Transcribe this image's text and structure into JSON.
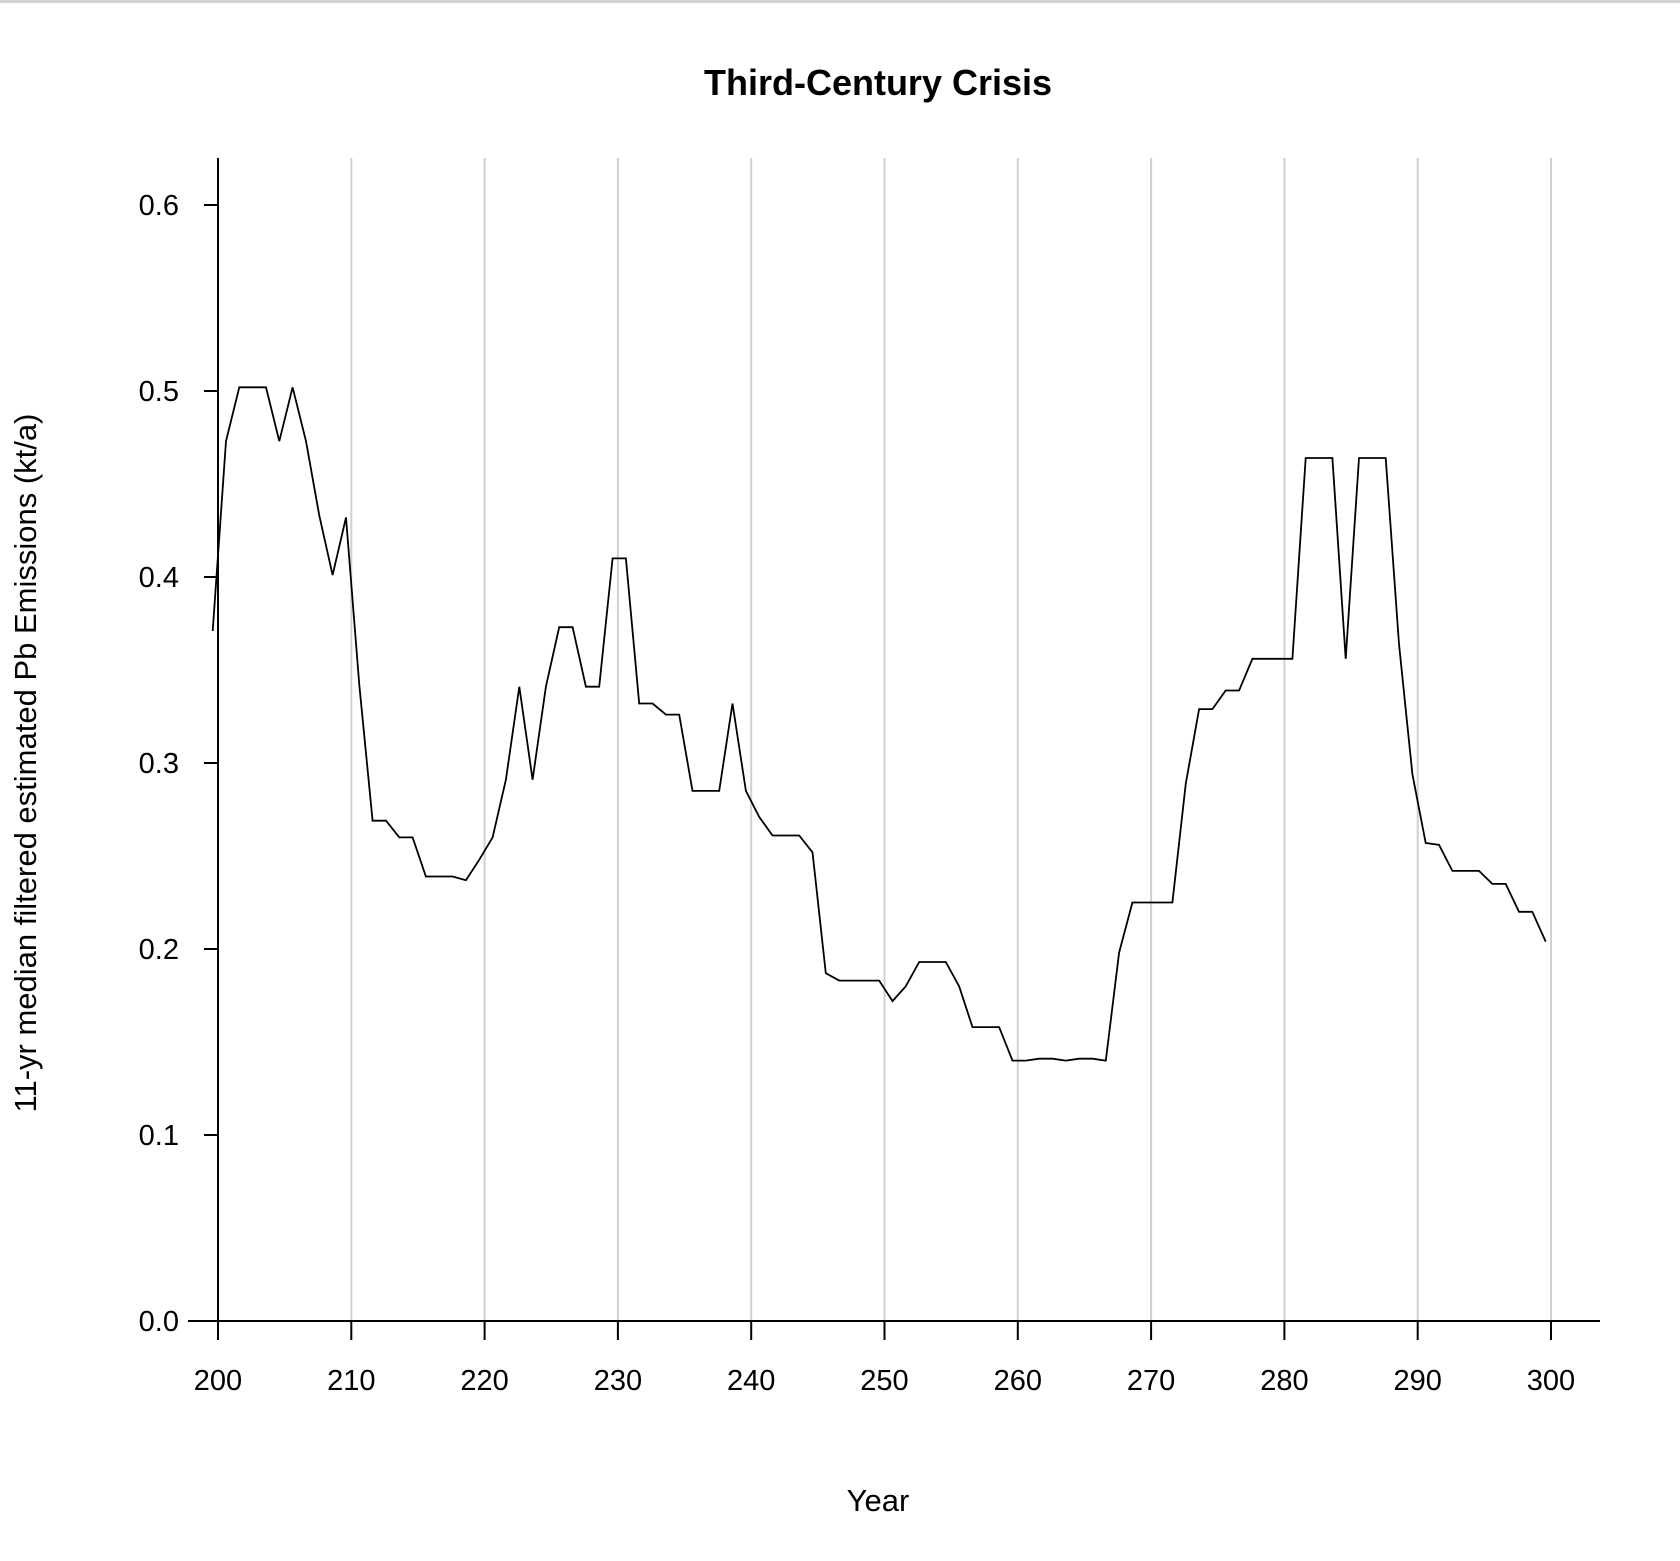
{
  "chart_data": {
    "type": "line",
    "title": "Third-Century Crisis",
    "xlabel": "Year",
    "ylabel": "11-yr median filtered estimated Pb Emissions (kt/a)",
    "xlim": [
      200,
      300
    ],
    "ylim": [
      0,
      0.6
    ],
    "xticks": [
      "200",
      "210",
      "220",
      "230",
      "240",
      "250",
      "260",
      "270",
      "280",
      "290",
      "300"
    ],
    "yticks": [
      "0.0",
      "0.1",
      "0.2",
      "0.3",
      "0.4",
      "0.5",
      "0.6"
    ],
    "grid": "vertical",
    "x": [
      199.6,
      200.6,
      201.6,
      202.6,
      203.6,
      204.6,
      205.6,
      206.6,
      207.6,
      208.6,
      209.6,
      210.6,
      211.6,
      212.6,
      213.6,
      214.6,
      215.6,
      216.6,
      217.6,
      218.6,
      219.6,
      220.6,
      221.6,
      222.6,
      223.6,
      224.6,
      225.6,
      226.6,
      227.6,
      228.6,
      229.6,
      230.6,
      231.6,
      232.6,
      233.6,
      234.6,
      235.6,
      236.6,
      237.6,
      238.6,
      239.6,
      240.6,
      241.6,
      242.6,
      243.6,
      244.6,
      245.6,
      246.6,
      247.6,
      248.6,
      249.6,
      250.6,
      251.6,
      252.6,
      253.6,
      254.6,
      255.6,
      256.6,
      257.6,
      258.6,
      259.6,
      260.6,
      261.6,
      262.6,
      263.6,
      264.6,
      265.6,
      266.6,
      267.6,
      268.6,
      269.6,
      270.6,
      271.6,
      272.6,
      273.6,
      274.6,
      275.6,
      276.6,
      277.6,
      278.6,
      279.6,
      280.6,
      281.6,
      282.6,
      283.6,
      284.6,
      285.6,
      286.6,
      287.6,
      288.6,
      289.6,
      290.6,
      291.6,
      292.6,
      293.6,
      294.6,
      295.6,
      296.6,
      297.6,
      298.6,
      299.6
    ],
    "y": [
      0.371,
      0.473,
      0.502,
      0.502,
      0.502,
      0.473,
      0.502,
      0.473,
      0.433,
      0.401,
      0.432,
      0.342,
      0.269,
      0.269,
      0.26,
      0.26,
      0.239,
      0.239,
      0.239,
      0.237,
      0.248,
      0.26,
      0.291,
      0.341,
      0.291,
      0.341,
      0.373,
      0.373,
      0.341,
      0.341,
      0.41,
      0.41,
      0.332,
      0.332,
      0.326,
      0.326,
      0.285,
      0.285,
      0.285,
      0.332,
      0.285,
      0.271,
      0.261,
      0.261,
      0.261,
      0.252,
      0.187,
      0.183,
      0.183,
      0.183,
      0.183,
      0.172,
      0.18,
      0.193,
      0.193,
      0.193,
      0.18,
      0.158,
      0.158,
      0.158,
      0.14,
      0.14,
      0.141,
      0.141,
      0.14,
      0.141,
      0.141,
      0.14,
      0.198,
      0.225,
      0.225,
      0.225,
      0.225,
      0.289,
      0.329,
      0.329,
      0.339,
      0.339,
      0.356,
      0.356,
      0.356,
      0.356,
      0.464,
      0.464,
      0.464,
      0.356,
      0.464,
      0.464,
      0.464,
      0.364,
      0.294,
      0.257,
      0.256,
      0.242,
      0.242,
      0.242,
      0.235,
      0.235,
      0.22,
      0.22,
      0.204
    ]
  }
}
